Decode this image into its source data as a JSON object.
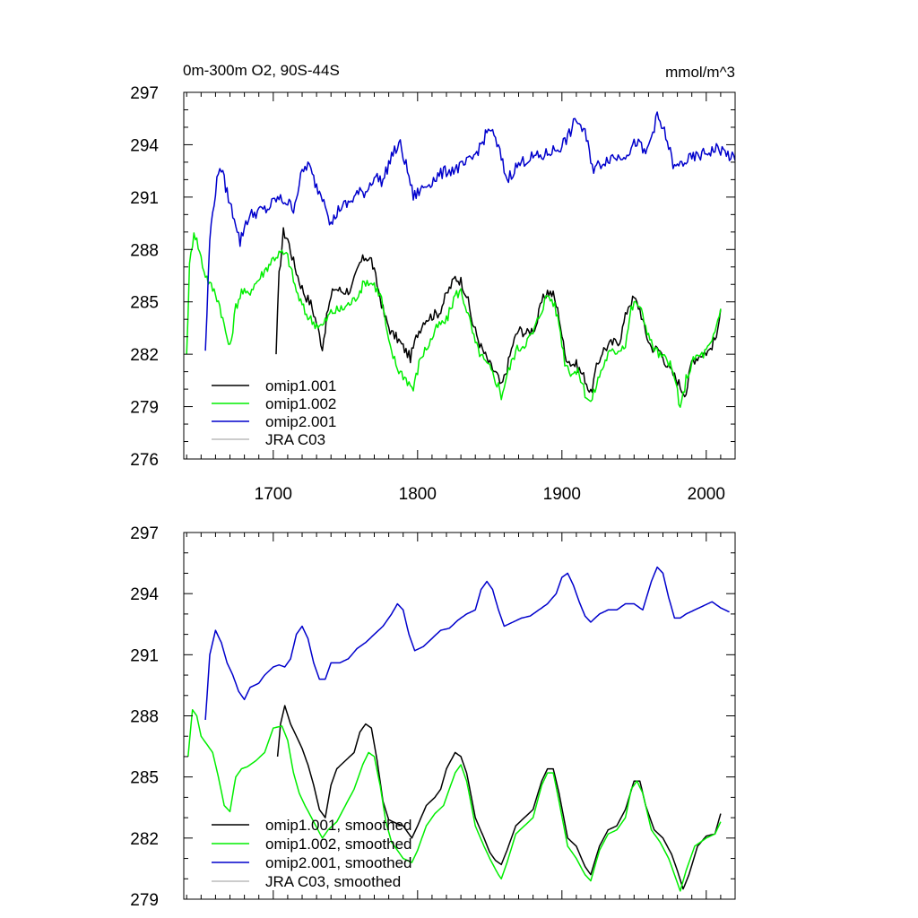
{
  "figure": {
    "title": "0m-300m O2, 90S-44S",
    "units": "mmol/m^3"
  },
  "colors": {
    "omip1_001": "#000000",
    "omip1_002": "#00ee00",
    "omip2_001": "#0000cc",
    "jra_c03": "#bbbbbb"
  },
  "chart_data": [
    {
      "type": "line",
      "title": "0m-300m O2, 90S-44S",
      "units": "mmol/m^3",
      "xlim": [
        1638,
        2020
      ],
      "ylim": [
        276,
        297
      ],
      "xticks": [
        1700,
        1800,
        1900,
        2000
      ],
      "xtick_labels": [
        "1700",
        "1800",
        "1900",
        "2000"
      ],
      "yticks": [
        297,
        294,
        291,
        288,
        285,
        282,
        279,
        276
      ],
      "ytick_labels": [
        "297",
        "294",
        "291",
        "288",
        "285",
        "282",
        "279",
        "276"
      ],
      "legend": [
        "omip1.001",
        "omip1.002",
        "omip2.001",
        "JRA C03"
      ],
      "legend_position": "bottom-left",
      "series": [
        {
          "name": "omip1.001",
          "color": "#000000",
          "noise": 0.3,
          "x": [
            1702,
            1704,
            1707,
            1710,
            1714,
            1718,
            1722,
            1726,
            1730,
            1734,
            1738,
            1742,
            1748,
            1754,
            1760,
            1764,
            1768,
            1772,
            1777,
            1782,
            1786,
            1790,
            1795,
            1800,
            1805,
            1810,
            1815,
            1820,
            1826,
            1830,
            1834,
            1838,
            1844,
            1850,
            1855,
            1858,
            1862,
            1866,
            1870,
            1876,
            1882,
            1886,
            1890,
            1894,
            1898,
            1902,
            1906,
            1910,
            1916,
            1920,
            1924,
            1928,
            1934,
            1940,
            1946,
            1950,
            1954,
            1958,
            1962,
            1968,
            1974,
            1980,
            1983,
            1986,
            1990,
            1996,
            2002,
            2008,
            2010
          ],
          "y": [
            282.0,
            286.5,
            289.0,
            288.6,
            287.3,
            286.2,
            285.4,
            284.9,
            283.8,
            282.4,
            284.6,
            285.8,
            285.6,
            285.7,
            287.2,
            287.6,
            287.4,
            286.0,
            284.2,
            283.2,
            282.9,
            282.4,
            281.8,
            283.2,
            284.0,
            284.2,
            284.4,
            285.4,
            286.4,
            286.2,
            285.4,
            283.8,
            282.4,
            281.4,
            280.8,
            280.1,
            281.2,
            282.6,
            283.4,
            283.2,
            283.6,
            285.0,
            285.6,
            285.4,
            284.2,
            282.0,
            281.5,
            281.4,
            280.6,
            279.7,
            281.2,
            282.2,
            282.6,
            282.8,
            284.8,
            285.2,
            284.6,
            283.2,
            282.4,
            282.2,
            281.2,
            280.5,
            280.0,
            279.8,
            281.6,
            282.0,
            282.2,
            283.2,
            284.6
          ]
        },
        {
          "name": "omip1.002",
          "color": "#00ee00",
          "noise": 0.3,
          "x": [
            1640,
            1642,
            1645,
            1648,
            1652,
            1656,
            1660,
            1663,
            1666,
            1670,
            1674,
            1678,
            1682,
            1686,
            1690,
            1695,
            1700,
            1705,
            1710,
            1716,
            1722,
            1728,
            1734,
            1740,
            1748,
            1756,
            1764,
            1770,
            1775,
            1780,
            1786,
            1792,
            1797,
            1802,
            1808,
            1814,
            1820,
            1826,
            1830,
            1834,
            1840,
            1846,
            1850,
            1856,
            1858,
            1862,
            1868,
            1874,
            1880,
            1886,
            1890,
            1894,
            1898,
            1902,
            1906,
            1912,
            1916,
            1920,
            1926,
            1932,
            1938,
            1944,
            1948,
            1952,
            1956,
            1962,
            1968,
            1974,
            1980,
            1982,
            1986,
            1992,
            1998,
            2004,
            2010
          ],
          "y": [
            282.0,
            287.0,
            289.1,
            288.2,
            286.8,
            286.0,
            285.5,
            284.8,
            283.6,
            282.3,
            284.7,
            285.6,
            285.4,
            285.9,
            286.3,
            286.9,
            287.5,
            287.8,
            287.6,
            285.6,
            284.4,
            283.8,
            283.6,
            284.4,
            284.6,
            285.1,
            286.2,
            286.0,
            285.2,
            282.6,
            281.2,
            280.6,
            280.0,
            281.8,
            282.6,
            283.6,
            283.9,
            285.4,
            285.6,
            284.6,
            282.6,
            281.6,
            281.2,
            280.2,
            279.6,
            280.8,
            282.2,
            282.6,
            283.2,
            284.6,
            285.4,
            285.0,
            283.8,
            281.6,
            281.0,
            280.9,
            279.8,
            279.2,
            280.8,
            282.0,
            282.2,
            282.6,
            284.6,
            285.0,
            284.2,
            282.6,
            281.9,
            281.6,
            280.0,
            278.7,
            280.6,
            281.8,
            282.0,
            282.6,
            284.6
          ]
        },
        {
          "name": "omip2.001",
          "color": "#0000cc",
          "noise": 0.35,
          "x": [
            1653,
            1656,
            1659,
            1663,
            1667,
            1670,
            1674,
            1677,
            1681,
            1685,
            1690,
            1696,
            1702,
            1708,
            1714,
            1720,
            1724,
            1730,
            1736,
            1740,
            1746,
            1752,
            1758,
            1764,
            1770,
            1776,
            1782,
            1788,
            1794,
            1797,
            1802,
            1808,
            1814,
            1820,
            1826,
            1832,
            1838,
            1844,
            1850,
            1856,
            1862,
            1868,
            1874,
            1880,
            1886,
            1892,
            1898,
            1904,
            1910,
            1916,
            1922,
            1928,
            1934,
            1940,
            1946,
            1952,
            1958,
            1966,
            1972,
            1978,
            1984,
            1990,
            1996,
            2002,
            2008,
            2014,
            2020
          ],
          "y": [
            282.2,
            288.6,
            290.8,
            292.9,
            291.6,
            290.6,
            289.6,
            288.4,
            289.6,
            290.0,
            290.2,
            290.3,
            290.9,
            290.8,
            290.4,
            292.4,
            292.9,
            291.6,
            290.8,
            289.4,
            290.4,
            290.6,
            291.2,
            291.3,
            292.2,
            291.9,
            293.4,
            294.0,
            292.2,
            291.0,
            291.4,
            291.8,
            292.2,
            292.5,
            292.6,
            292.8,
            293.2,
            294.0,
            295.0,
            293.8,
            292.0,
            292.7,
            293.1,
            293.3,
            293.3,
            293.6,
            293.8,
            294.4,
            295.5,
            294.6,
            292.6,
            293.0,
            293.3,
            293.3,
            293.6,
            294.2,
            293.4,
            295.6,
            294.5,
            292.6,
            293.0,
            293.2,
            293.4,
            293.6,
            293.8,
            293.5,
            293.1
          ]
        }
      ]
    },
    {
      "type": "line",
      "xlim": [
        1638,
        2020
      ],
      "ylim": [
        279,
        297
      ],
      "xticks": [
        1700,
        1800,
        1900,
        2000
      ],
      "yticks": [
        297,
        294,
        291,
        288,
        285,
        282,
        279
      ],
      "ytick_labels": [
        "297",
        "294",
        "291",
        "288",
        "285",
        "282",
        "279"
      ],
      "legend": [
        "omip1.001, smoothed",
        "omip1.002, smoothed",
        "omip2.001, smoothed",
        "JRA C03, smoothed"
      ],
      "legend_position": "bottom-left",
      "series": [
        {
          "name": "omip1.001, smoothed",
          "color": "#000000",
          "noise": 0,
          "x": [
            1703,
            1705,
            1708,
            1712,
            1716,
            1720,
            1724,
            1728,
            1732,
            1736,
            1740,
            1744,
            1750,
            1756,
            1760,
            1764,
            1768,
            1772,
            1776,
            1780,
            1786,
            1790,
            1796,
            1800,
            1806,
            1812,
            1816,
            1820,
            1826,
            1830,
            1834,
            1840,
            1846,
            1850,
            1854,
            1858,
            1862,
            1868,
            1874,
            1880,
            1886,
            1890,
            1894,
            1898,
            1904,
            1910,
            1916,
            1920,
            1926,
            1932,
            1938,
            1944,
            1950,
            1954,
            1958,
            1964,
            1970,
            1976,
            1980,
            1984,
            1988,
            1994,
            2000,
            2006,
            2010
          ],
          "y": [
            286.0,
            287.6,
            288.5,
            287.6,
            287.0,
            286.4,
            285.6,
            284.6,
            283.4,
            283.0,
            284.6,
            285.4,
            285.8,
            286.2,
            287.2,
            287.6,
            287.4,
            285.8,
            283.8,
            282.9,
            282.7,
            282.6,
            282.0,
            282.6,
            283.6,
            284.0,
            284.4,
            285.4,
            286.2,
            286.0,
            285.2,
            283.0,
            282.0,
            281.3,
            280.9,
            280.7,
            281.4,
            282.6,
            283.0,
            283.4,
            284.8,
            285.4,
            285.4,
            284.2,
            282.0,
            281.6,
            280.6,
            280.2,
            281.6,
            282.4,
            282.6,
            283.4,
            284.8,
            284.8,
            283.6,
            282.4,
            282.0,
            281.2,
            280.4,
            279.5,
            280.2,
            281.6,
            282.1,
            282.2,
            283.2
          ]
        },
        {
          "name": "omip1.002, smoothed",
          "color": "#00ee00",
          "noise": 0,
          "x": [
            1641,
            1644,
            1647,
            1650,
            1654,
            1658,
            1662,
            1666,
            1670,
            1674,
            1678,
            1682,
            1688,
            1694,
            1700,
            1706,
            1710,
            1714,
            1718,
            1722,
            1728,
            1734,
            1738,
            1744,
            1750,
            1756,
            1762,
            1766,
            1770,
            1774,
            1778,
            1782,
            1786,
            1790,
            1796,
            1800,
            1806,
            1812,
            1818,
            1822,
            1826,
            1830,
            1834,
            1840,
            1846,
            1850,
            1856,
            1858,
            1862,
            1868,
            1874,
            1880,
            1886,
            1890,
            1894,
            1898,
            1904,
            1910,
            1916,
            1920,
            1926,
            1932,
            1938,
            1944,
            1948,
            1952,
            1956,
            1962,
            1968,
            1974,
            1980,
            1982,
            1986,
            1992,
            2000,
            2006,
            2010
          ],
          "y": [
            286.0,
            288.3,
            288.0,
            287.0,
            286.6,
            286.2,
            285.0,
            283.6,
            283.3,
            285.0,
            285.4,
            285.5,
            285.8,
            286.2,
            287.4,
            287.5,
            286.8,
            285.2,
            284.2,
            283.6,
            282.8,
            282.0,
            282.4,
            282.8,
            283.6,
            284.4,
            285.6,
            286.2,
            286.0,
            284.6,
            282.8,
            281.8,
            281.4,
            281.0,
            280.8,
            281.4,
            282.6,
            283.2,
            283.6,
            284.4,
            285.2,
            285.6,
            284.8,
            282.6,
            281.6,
            281.0,
            280.2,
            280.0,
            280.8,
            282.2,
            282.6,
            283.0,
            284.6,
            285.2,
            285.2,
            283.8,
            281.6,
            281.0,
            280.2,
            279.9,
            281.4,
            282.2,
            282.4,
            283.0,
            284.4,
            284.8,
            284.2,
            282.4,
            281.8,
            281.0,
            279.8,
            279.4,
            280.4,
            281.6,
            282.0,
            282.2,
            282.8
          ]
        },
        {
          "name": "omip2.001, smoothed",
          "color": "#0000cc",
          "noise": 0,
          "x": [
            1653,
            1656,
            1660,
            1664,
            1668,
            1672,
            1676,
            1680,
            1684,
            1690,
            1694,
            1700,
            1704,
            1708,
            1712,
            1716,
            1720,
            1724,
            1728,
            1732,
            1736,
            1740,
            1746,
            1752,
            1758,
            1764,
            1770,
            1776,
            1782,
            1786,
            1790,
            1794,
            1798,
            1804,
            1810,
            1816,
            1822,
            1828,
            1834,
            1840,
            1844,
            1848,
            1852,
            1856,
            1860,
            1866,
            1872,
            1878,
            1884,
            1890,
            1896,
            1900,
            1904,
            1908,
            1912,
            1916,
            1920,
            1926,
            1932,
            1938,
            1944,
            1950,
            1956,
            1962,
            1966,
            1970,
            1974,
            1978,
            1982,
            1986,
            1992,
            1998,
            2004,
            2010,
            2016
          ],
          "y": [
            287.8,
            291.0,
            292.2,
            291.6,
            290.6,
            290.0,
            289.2,
            288.8,
            289.4,
            289.6,
            290.0,
            290.4,
            290.5,
            290.4,
            290.8,
            292.0,
            292.4,
            291.8,
            290.6,
            289.8,
            289.8,
            290.6,
            290.6,
            290.8,
            291.3,
            291.6,
            292.0,
            292.4,
            293.0,
            293.5,
            293.2,
            292.0,
            291.2,
            291.4,
            291.8,
            292.2,
            292.3,
            292.7,
            293.0,
            293.2,
            294.2,
            294.6,
            294.2,
            293.2,
            292.4,
            292.6,
            292.8,
            292.9,
            293.2,
            293.5,
            294.0,
            294.8,
            295.0,
            294.4,
            293.6,
            292.9,
            292.6,
            293.0,
            293.2,
            293.2,
            293.5,
            293.5,
            293.2,
            294.6,
            295.3,
            295.0,
            293.8,
            292.8,
            292.8,
            293.0,
            293.2,
            293.4,
            293.6,
            293.3,
            293.1
          ]
        }
      ]
    }
  ]
}
